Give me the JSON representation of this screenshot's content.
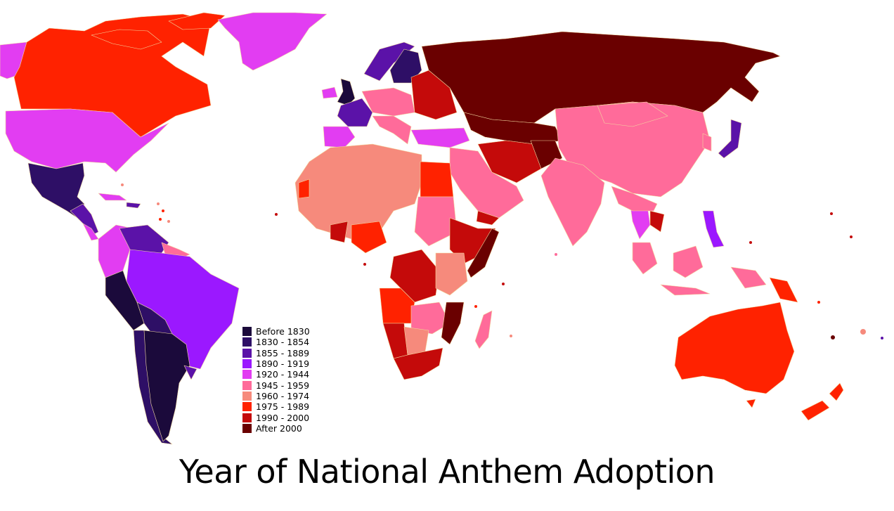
{
  "title": "Year of National Anthem Adoption",
  "legend": [
    {
      "label": "Before 1830",
      "color": "#1b0a3b"
    },
    {
      "label": "1830 - 1854",
      "color": "#2e0f66"
    },
    {
      "label": "1855 - 1889",
      "color": "#5b12a8"
    },
    {
      "label": "1890 - 1919",
      "color": "#9b18ff"
    },
    {
      "label": "1920 - 1944",
      "color": "#e23df2"
    },
    {
      "label": "1945 - 1959",
      "color": "#ff6b9a"
    },
    {
      "label": "1960 - 1974",
      "color": "#f68a7c"
    },
    {
      "label": "1975 - 1989",
      "color": "#ff2200"
    },
    {
      "label": "1990 - 2000",
      "color": "#c40a0a"
    },
    {
      "label": "After 2000",
      "color": "#6a0000"
    }
  ]
}
